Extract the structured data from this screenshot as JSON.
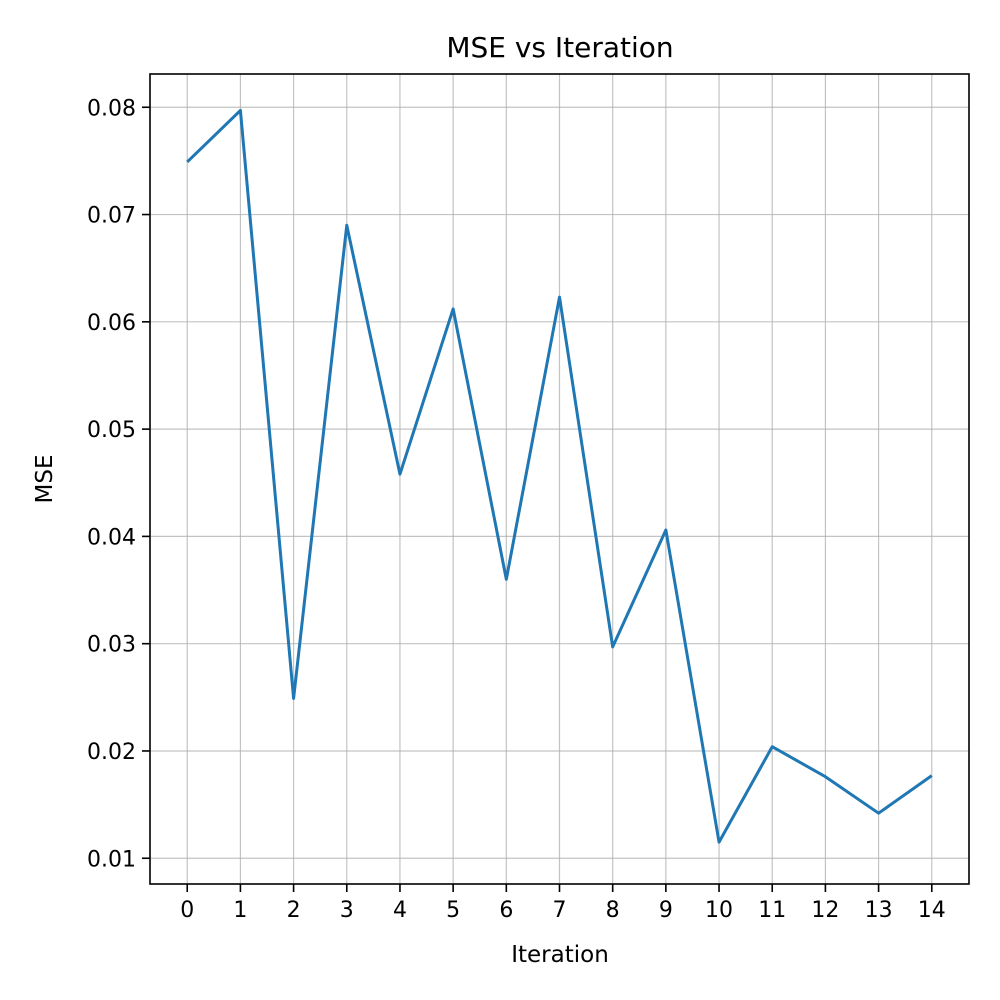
{
  "chart_data": {
    "type": "line",
    "title": "MSE vs Iteration",
    "xlabel": "Iteration",
    "ylabel": "MSE",
    "x": [
      0,
      1,
      2,
      3,
      4,
      5,
      6,
      7,
      8,
      9,
      10,
      11,
      12,
      13,
      14
    ],
    "series": [
      {
        "color": "#1f77b4",
        "values": [
          0.0749,
          0.0797,
          0.0249,
          0.069,
          0.0458,
          0.0612,
          0.036,
          0.0623,
          0.0297,
          0.0406,
          0.0115,
          0.0204,
          0.0176,
          0.0142,
          0.0177
        ]
      }
    ],
    "xticks": [
      "0",
      "1",
      "2",
      "3",
      "4",
      "5",
      "6",
      "7",
      "8",
      "9",
      "10",
      "11",
      "12",
      "13",
      "14"
    ],
    "yticks": [
      "0.01",
      "0.02",
      "0.03",
      "0.04",
      "0.05",
      "0.06",
      "0.07",
      "0.08"
    ],
    "ytick_values": [
      0.01,
      0.02,
      0.03,
      0.04,
      0.05,
      0.06,
      0.07,
      0.08
    ],
    "xlim": [
      -0.7,
      14.7
    ],
    "ylim": [
      0.0076,
      0.0831
    ],
    "grid": true
  }
}
